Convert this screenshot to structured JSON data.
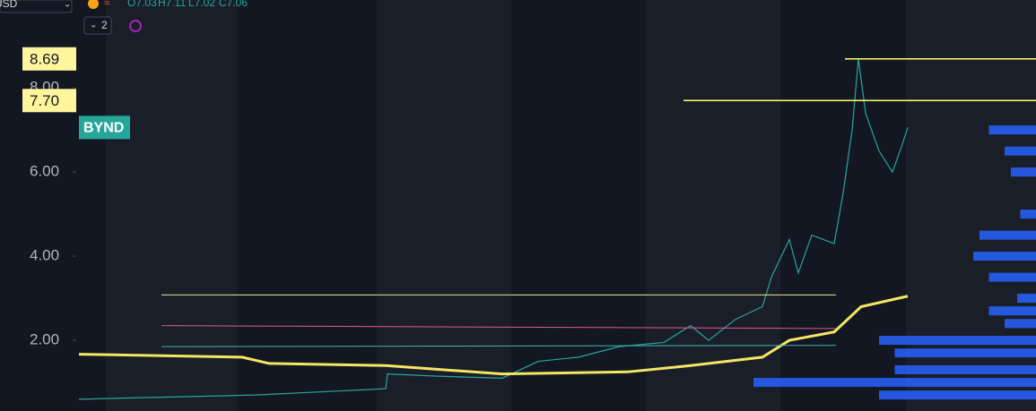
{
  "chart_data": {
    "type": "line",
    "symbol": "BYND",
    "currency": "USD",
    "interval_count": "2",
    "ohlc": [
      "O7.03",
      "H7.11",
      "L7.02",
      "C7.06"
    ],
    "xlim": [
      0,
      107
    ],
    "ylim": [
      0.32,
      10.09
    ],
    "yticks": [
      {
        "value": 2,
        "label": "2.00"
      },
      {
        "value": 4,
        "label": "4.00"
      },
      {
        "value": 6,
        "label": "6.00"
      },
      {
        "value": 8,
        "label": "8.00"
      }
    ],
    "price_labels": [
      {
        "value": 8.69,
        "label": "8.69"
      },
      {
        "value": 7.7,
        "label": "7.70"
      }
    ],
    "last_price": 7.06,
    "series": [
      {
        "color": "#26a69a",
        "width": 1.2,
        "x": [
          0.3,
          10,
          20,
          34.5,
          34.7,
          40,
          47.5,
          51.5,
          56,
          60.5,
          65.5,
          68.5,
          70.5,
          73.5,
          76.5,
          77.5,
          79.5,
          80.5,
          82,
          84.5,
          85.5,
          86.5,
          87.2,
          88,
          89.5,
          91,
          92,
          92.7
        ],
        "values": [
          0.6,
          0.65,
          0.7,
          0.85,
          1.2,
          1.15,
          1.1,
          1.5,
          1.6,
          1.85,
          1.95,
          2.35,
          2.0,
          2.5,
          2.8,
          3.5,
          4.4,
          3.6,
          4.5,
          4.3,
          5.5,
          7.0,
          8.69,
          7.4,
          6.5,
          6.0,
          6.6,
          7.06
        ]
      },
      {
        "color": "#f5e663",
        "width": 3,
        "x": [
          0.3,
          18.5,
          21.5,
          34.5,
          47.5,
          61.5,
          68.5,
          76.5,
          79.5,
          84.5,
          87.5,
          92.7
        ],
        "values": [
          1.67,
          1.6,
          1.45,
          1.4,
          1.2,
          1.25,
          1.4,
          1.6,
          2.0,
          2.2,
          2.8,
          3.05
        ]
      },
      {
        "color": "#f0e68c",
        "width": 1,
        "x": [
          9.5,
          84.7
        ],
        "values": [
          3.08,
          3.08
        ]
      },
      {
        "color": "#e05a8a",
        "width": 1,
        "x": [
          9.5,
          84.7
        ],
        "values": [
          2.35,
          2.28
        ]
      },
      {
        "color": "#3fb6b0",
        "width": 1,
        "x": [
          9.5,
          84.7
        ],
        "values": [
          1.85,
          1.88
        ]
      },
      {
        "color": "#ffff66",
        "width": 1.5,
        "x": [
          85.7,
          107
        ],
        "values": [
          8.69,
          8.69
        ]
      },
      {
        "color": "#ffff66",
        "width": 1.5,
        "x": [
          67.7,
          107
        ],
        "values": [
          7.7,
          7.7
        ]
      }
    ],
    "volume_profile": {
      "color": "#2962ff",
      "prices": [
        7.0,
        6.5,
        6.0,
        5.0,
        4.5,
        4.0,
        3.5,
        3.0,
        2.7,
        2.4,
        2.0,
        1.7,
        1.3,
        1.0,
        0.7
      ],
      "values": [
        15,
        10,
        8,
        5,
        18,
        20,
        15,
        6,
        15,
        10,
        50,
        45,
        45,
        90,
        50
      ]
    }
  }
}
